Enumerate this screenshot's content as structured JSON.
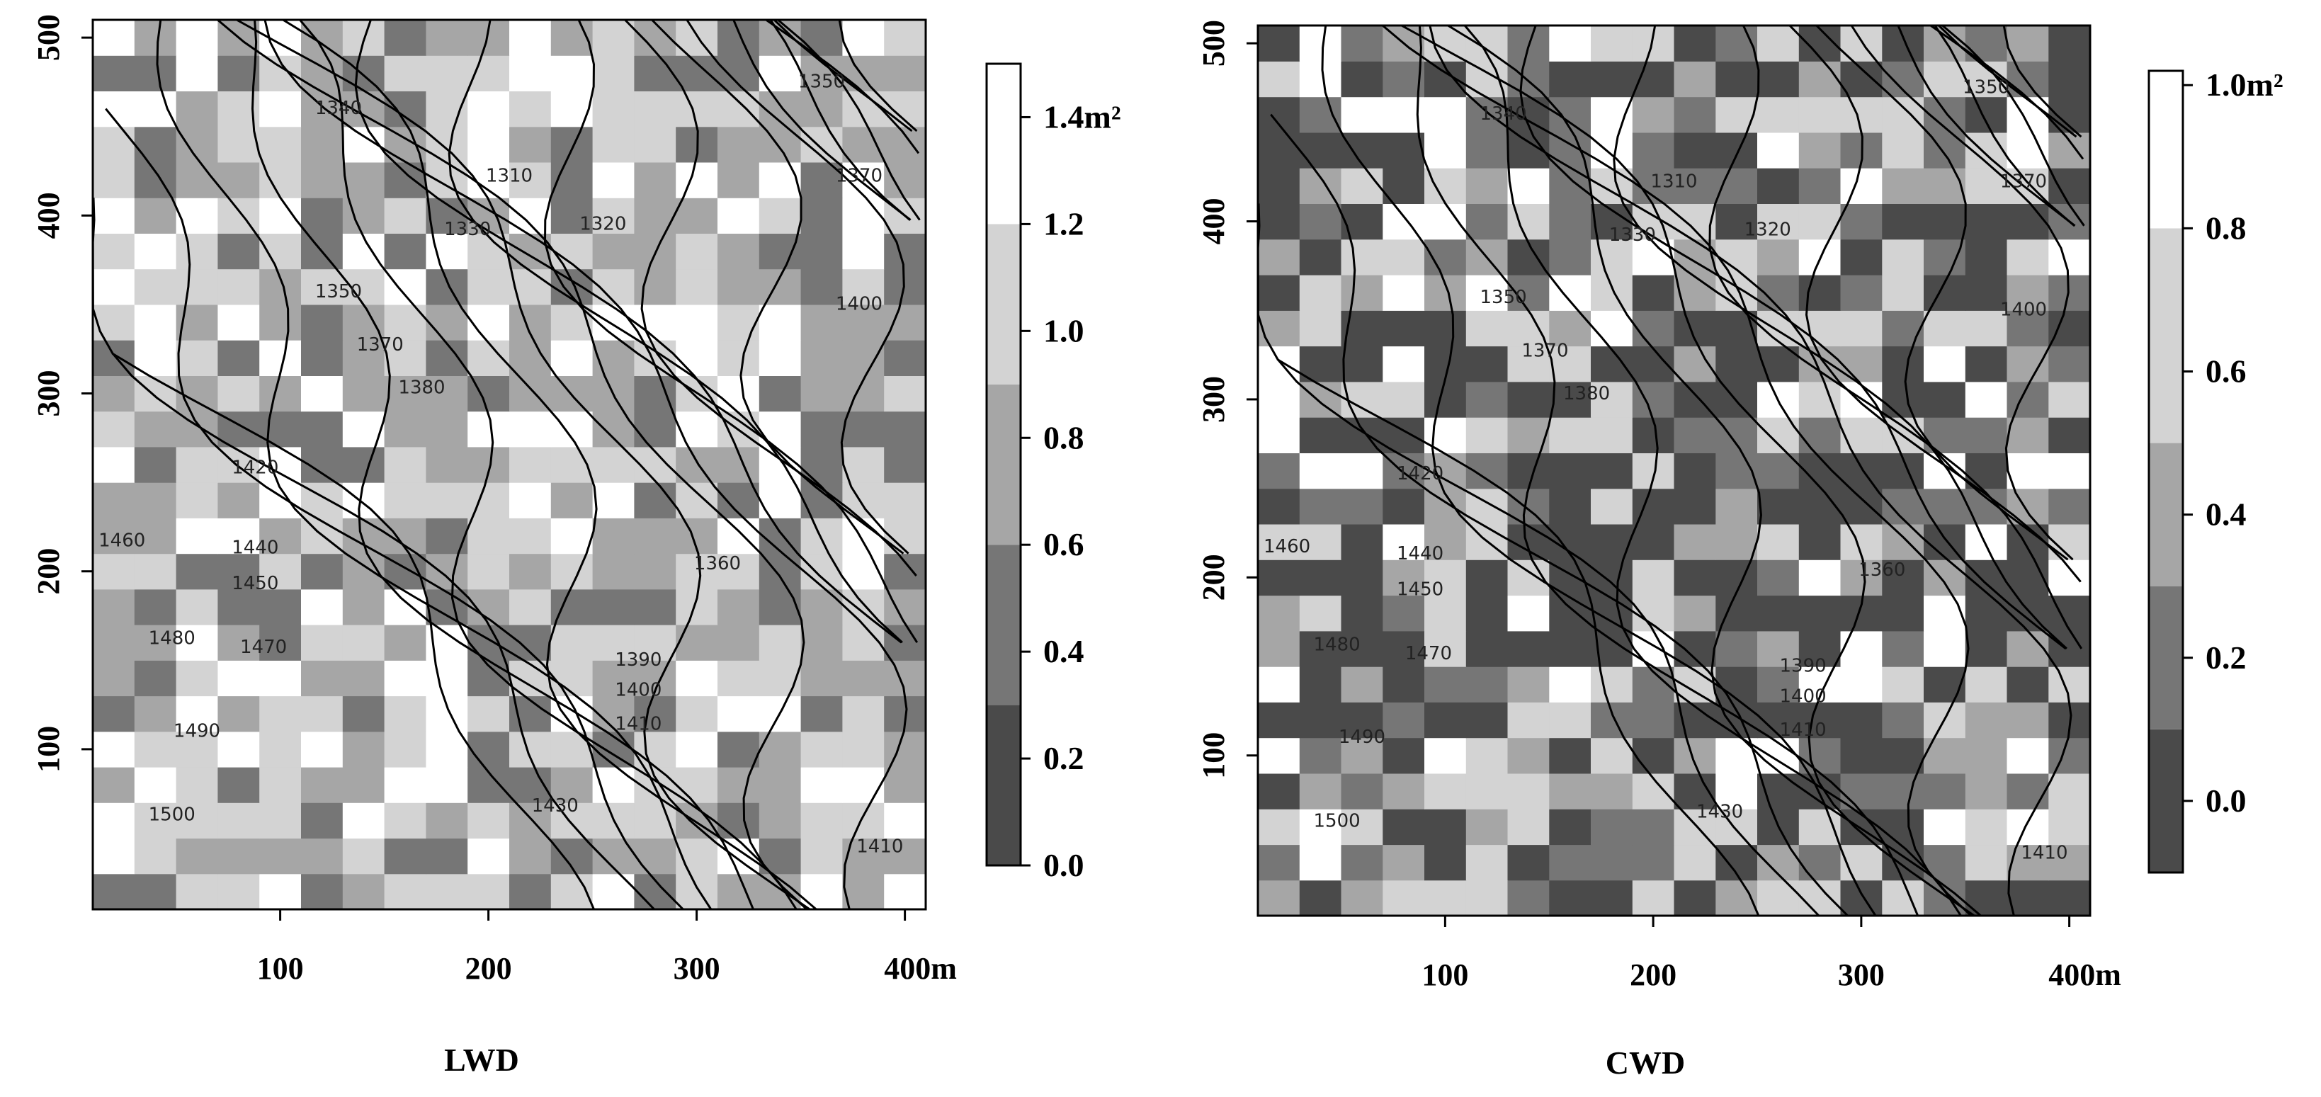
{
  "chart_data": [
    {
      "type": "heatmap",
      "title": "LWD",
      "x_ticks": [
        "100",
        "200",
        "300",
        "400m"
      ],
      "y_ticks": [
        "100",
        "200",
        "300",
        "400",
        "500"
      ],
      "xlim": [
        0,
        400
      ],
      "ylim": [
        0,
        500
      ],
      "cell_size": 20,
      "color_legend": {
        "labels": [
          "1.4m²",
          "1.2",
          "1.0",
          "0.8",
          "0.6",
          "0.4",
          "0.2",
          "0.0"
        ],
        "range": [
          0,
          1.5
        ],
        "bands": [
          {
            "from": 0.0,
            "to": 0.3,
            "color": "#4a4a4a"
          },
          {
            "from": 0.3,
            "to": 0.6,
            "color": "#767676"
          },
          {
            "from": 0.6,
            "to": 0.9,
            "color": "#a6a6a6"
          },
          {
            "from": 0.9,
            "to": 1.2,
            "color": "#d3d3d3"
          },
          {
            "from": 1.2,
            "to": 1.5,
            "color": "#ffffff"
          }
        ]
      },
      "contour_labels": [
        {
          "text": "1340",
          "x": 128,
          "y": 460
        },
        {
          "text": "1310",
          "x": 210,
          "y": 422
        },
        {
          "text": "1330",
          "x": 190,
          "y": 392
        },
        {
          "text": "1320",
          "x": 255,
          "y": 395
        },
        {
          "text": "1350",
          "x": 360,
          "y": 475
        },
        {
          "text": "1370",
          "x": 378,
          "y": 422
        },
        {
          "text": "1400",
          "x": 378,
          "y": 350
        },
        {
          "text": "1350",
          "x": 128,
          "y": 357
        },
        {
          "text": "1370",
          "x": 148,
          "y": 327
        },
        {
          "text": "1380",
          "x": 168,
          "y": 303
        },
        {
          "text": "1420",
          "x": 88,
          "y": 258
        },
        {
          "text": "1360",
          "x": 310,
          "y": 204
        },
        {
          "text": "1460",
          "x": 24,
          "y": 217
        },
        {
          "text": "1440",
          "x": 88,
          "y": 213
        },
        {
          "text": "1450",
          "x": 88,
          "y": 193
        },
        {
          "text": "1390",
          "x": 272,
          "y": 150
        },
        {
          "text": "1400",
          "x": 272,
          "y": 133
        },
        {
          "text": "1410",
          "x": 272,
          "y": 114
        },
        {
          "text": "1480",
          "x": 48,
          "y": 162
        },
        {
          "text": "1470",
          "x": 92,
          "y": 157
        },
        {
          "text": "1490",
          "x": 60,
          "y": 110
        },
        {
          "text": "1500",
          "x": 48,
          "y": 63
        },
        {
          "text": "1430",
          "x": 232,
          "y": 68
        },
        {
          "text": "1410",
          "x": 388,
          "y": 45
        }
      ]
    },
    {
      "type": "heatmap",
      "title": "CWD",
      "x_ticks": [
        "100",
        "200",
        "300",
        "400m"
      ],
      "y_ticks": [
        "100",
        "200",
        "300",
        "400",
        "500"
      ],
      "xlim": [
        0,
        400
      ],
      "ylim": [
        0,
        500
      ],
      "cell_size": 20,
      "color_legend": {
        "labels": [
          "1.0m²",
          "0.8",
          "0.6",
          "0.4",
          "0.2",
          "0.0"
        ],
        "range": [
          -0.1,
          1.02
        ],
        "bands": [
          {
            "from": -0.1,
            "to": 0.1,
            "color": "#4a4a4a"
          },
          {
            "from": 0.1,
            "to": 0.3,
            "color": "#767676"
          },
          {
            "from": 0.3,
            "to": 0.5,
            "color": "#a6a6a6"
          },
          {
            "from": 0.5,
            "to": 0.8,
            "color": "#d3d3d3"
          },
          {
            "from": 0.8,
            "to": 1.02,
            "color": "#ffffff"
          }
        ]
      },
      "contour_labels": [
        {
          "text": "1340",
          "x": 128,
          "y": 460
        },
        {
          "text": "1310",
          "x": 210,
          "y": 422
        },
        {
          "text": "1330",
          "x": 190,
          "y": 392
        },
        {
          "text": "1320",
          "x": 255,
          "y": 395
        },
        {
          "text": "1350",
          "x": 360,
          "y": 475
        },
        {
          "text": "1370",
          "x": 378,
          "y": 422
        },
        {
          "text": "1400",
          "x": 378,
          "y": 350
        },
        {
          "text": "1350",
          "x": 128,
          "y": 357
        },
        {
          "text": "1370",
          "x": 148,
          "y": 327
        },
        {
          "text": "1380",
          "x": 168,
          "y": 303
        },
        {
          "text": "1420",
          "x": 88,
          "y": 258
        },
        {
          "text": "1360",
          "x": 310,
          "y": 204
        },
        {
          "text": "1460",
          "x": 24,
          "y": 217
        },
        {
          "text": "1440",
          "x": 88,
          "y": 213
        },
        {
          "text": "1450",
          "x": 88,
          "y": 193
        },
        {
          "text": "1390",
          "x": 272,
          "y": 150
        },
        {
          "text": "1400",
          "x": 272,
          "y": 133
        },
        {
          "text": "1410",
          "x": 272,
          "y": 114
        },
        {
          "text": "1480",
          "x": 48,
          "y": 162
        },
        {
          "text": "1470",
          "x": 92,
          "y": 157
        },
        {
          "text": "1490",
          "x": 60,
          "y": 110
        },
        {
          "text": "1500",
          "x": 48,
          "y": 63
        },
        {
          "text": "1430",
          "x": 232,
          "y": 68
        },
        {
          "text": "1410",
          "x": 388,
          "y": 45
        }
      ]
    }
  ]
}
